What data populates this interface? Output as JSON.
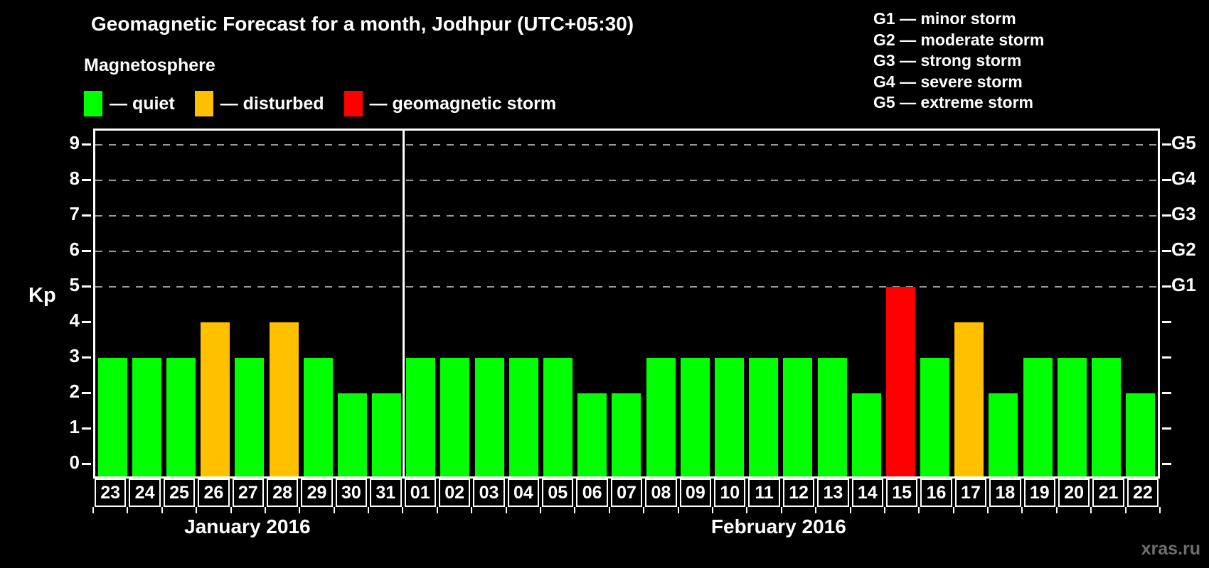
{
  "chart_data": {
    "type": "bar",
    "title": "Geomagnetic Forecast for a month, Jodhpur (UTC+05:30)",
    "ylabel": "Kp",
    "ylim": [
      -0.35,
      9.39
    ],
    "y_ticks": [
      0,
      1,
      2,
      3,
      4,
      5,
      6,
      7,
      8,
      9
    ],
    "grid_levels": [
      5,
      6,
      7,
      8,
      9
    ],
    "grid_style": "dashed",
    "legend_position": "top-left",
    "right_axis_labels": [
      {
        "text": "G1",
        "kp": 5
      },
      {
        "text": "G2",
        "kp": 6
      },
      {
        "text": "G3",
        "kp": 7
      },
      {
        "text": "G4",
        "kp": 8
      },
      {
        "text": "G5",
        "kp": 9
      }
    ],
    "legend_title": "Magnetosphere",
    "legend": [
      {
        "label": "— quiet",
        "status": "quiet"
      },
      {
        "label": "— disturbed",
        "status": "disturbed"
      },
      {
        "label": "— geomagnetic storm",
        "status": "storm"
      }
    ],
    "g_scale_legend": [
      "G1 — minor storm",
      "G2 — moderate storm",
      "G3 — strong storm",
      "G4 — severe storm",
      "G5 — extreme storm"
    ],
    "months": [
      {
        "name": "January 2016",
        "days": [
          {
            "day": "23",
            "kp": 3,
            "status": "quiet"
          },
          {
            "day": "24",
            "kp": 3,
            "status": "quiet"
          },
          {
            "day": "25",
            "kp": 3,
            "status": "quiet"
          },
          {
            "day": "26",
            "kp": 4,
            "status": "disturbed"
          },
          {
            "day": "27",
            "kp": 3,
            "status": "quiet"
          },
          {
            "day": "28",
            "kp": 4,
            "status": "disturbed"
          },
          {
            "day": "29",
            "kp": 3,
            "status": "quiet"
          },
          {
            "day": "30",
            "kp": 2,
            "status": "quiet"
          },
          {
            "day": "31",
            "kp": 2,
            "status": "quiet"
          }
        ]
      },
      {
        "name": "February 2016",
        "days": [
          {
            "day": "01",
            "kp": 3,
            "status": "quiet"
          },
          {
            "day": "02",
            "kp": 3,
            "status": "quiet"
          },
          {
            "day": "03",
            "kp": 3,
            "status": "quiet"
          },
          {
            "day": "04",
            "kp": 3,
            "status": "quiet"
          },
          {
            "day": "05",
            "kp": 3,
            "status": "quiet"
          },
          {
            "day": "06",
            "kp": 2,
            "status": "quiet"
          },
          {
            "day": "07",
            "kp": 2,
            "status": "quiet"
          },
          {
            "day": "08",
            "kp": 3,
            "status": "quiet"
          },
          {
            "day": "09",
            "kp": 3,
            "status": "quiet"
          },
          {
            "day": "10",
            "kp": 3,
            "status": "quiet"
          },
          {
            "day": "11",
            "kp": 3,
            "status": "quiet"
          },
          {
            "day": "12",
            "kp": 3,
            "status": "quiet"
          },
          {
            "day": "13",
            "kp": 3,
            "status": "quiet"
          },
          {
            "day": "14",
            "kp": 2,
            "status": "quiet"
          },
          {
            "day": "15",
            "kp": 5,
            "status": "storm"
          },
          {
            "day": "16",
            "kp": 3,
            "status": "quiet"
          },
          {
            "day": "17",
            "kp": 4,
            "status": "disturbed"
          },
          {
            "day": "18",
            "kp": 2,
            "status": "quiet"
          },
          {
            "day": "19",
            "kp": 3,
            "status": "quiet"
          },
          {
            "day": "20",
            "kp": 3,
            "status": "quiet"
          },
          {
            "day": "21",
            "kp": 3,
            "status": "quiet"
          },
          {
            "day": "22",
            "kp": 2,
            "status": "quiet"
          }
        ]
      }
    ]
  },
  "colors": {
    "quiet": "#00ff00",
    "disturbed": "#ffc000",
    "storm": "#ff0000",
    "grid": "#999999",
    "axis": "#ffffff",
    "watermark": "#6e6e6e"
  },
  "watermark": "xras.ru"
}
